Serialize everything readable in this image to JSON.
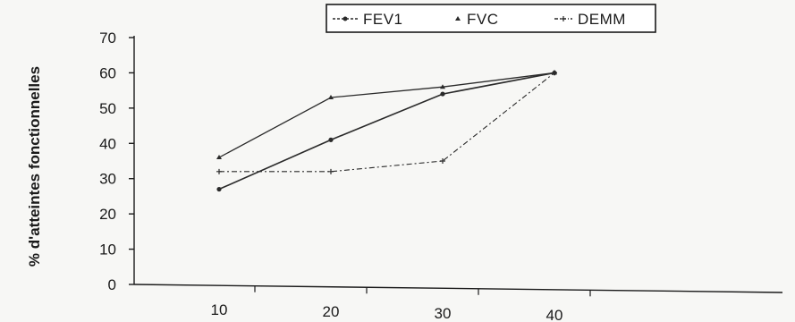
{
  "chart_data": {
    "type": "line",
    "x": [
      10,
      20,
      30,
      40
    ],
    "series": [
      {
        "name": "FEV1",
        "values": [
          27,
          41,
          54,
          60
        ]
      },
      {
        "name": "FVC",
        "values": [
          36,
          53,
          56,
          60
        ]
      },
      {
        "name": "DEMM",
        "values": [
          32,
          32,
          35,
          60
        ]
      }
    ],
    "ylabel": "% d'atteintes fonctionnelles",
    "xlabel": "",
    "ylim": [
      0,
      70
    ],
    "yticks": [
      0,
      10,
      20,
      30,
      40,
      50,
      60,
      70
    ],
    "legend_position": "top",
    "grid": false
  },
  "colors": {
    "line": "#2a2a2a",
    "axis": "#1a1a1a"
  }
}
